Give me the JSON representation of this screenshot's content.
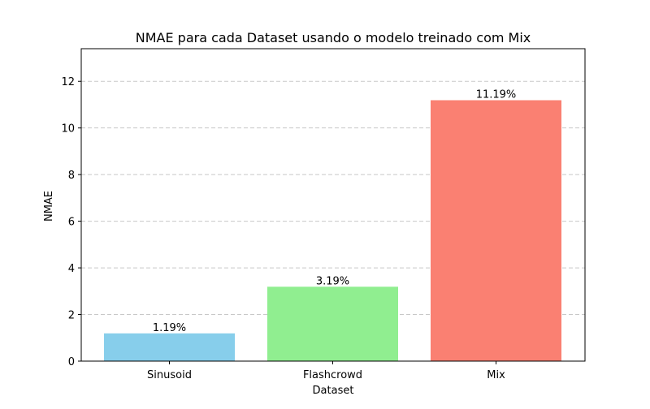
{
  "chart_data": {
    "type": "bar",
    "title": "NMAE para cada Dataset usando o modelo treinado com Mix",
    "xlabel": "Dataset",
    "ylabel": "NMAE",
    "categories": [
      "Sinusoid",
      "Flashcrowd",
      "Mix"
    ],
    "values": [
      1.19,
      3.19,
      11.19
    ],
    "data_labels": [
      "1.19%",
      "3.19%",
      "11.19%"
    ],
    "colors": [
      "#87CEEB",
      "#90EE90",
      "#FA8072"
    ],
    "ylim": [
      0,
      13.4
    ],
    "yticks": [
      0,
      2,
      4,
      6,
      8,
      10,
      12
    ],
    "grid": "y-dashed",
    "legend": "none"
  }
}
